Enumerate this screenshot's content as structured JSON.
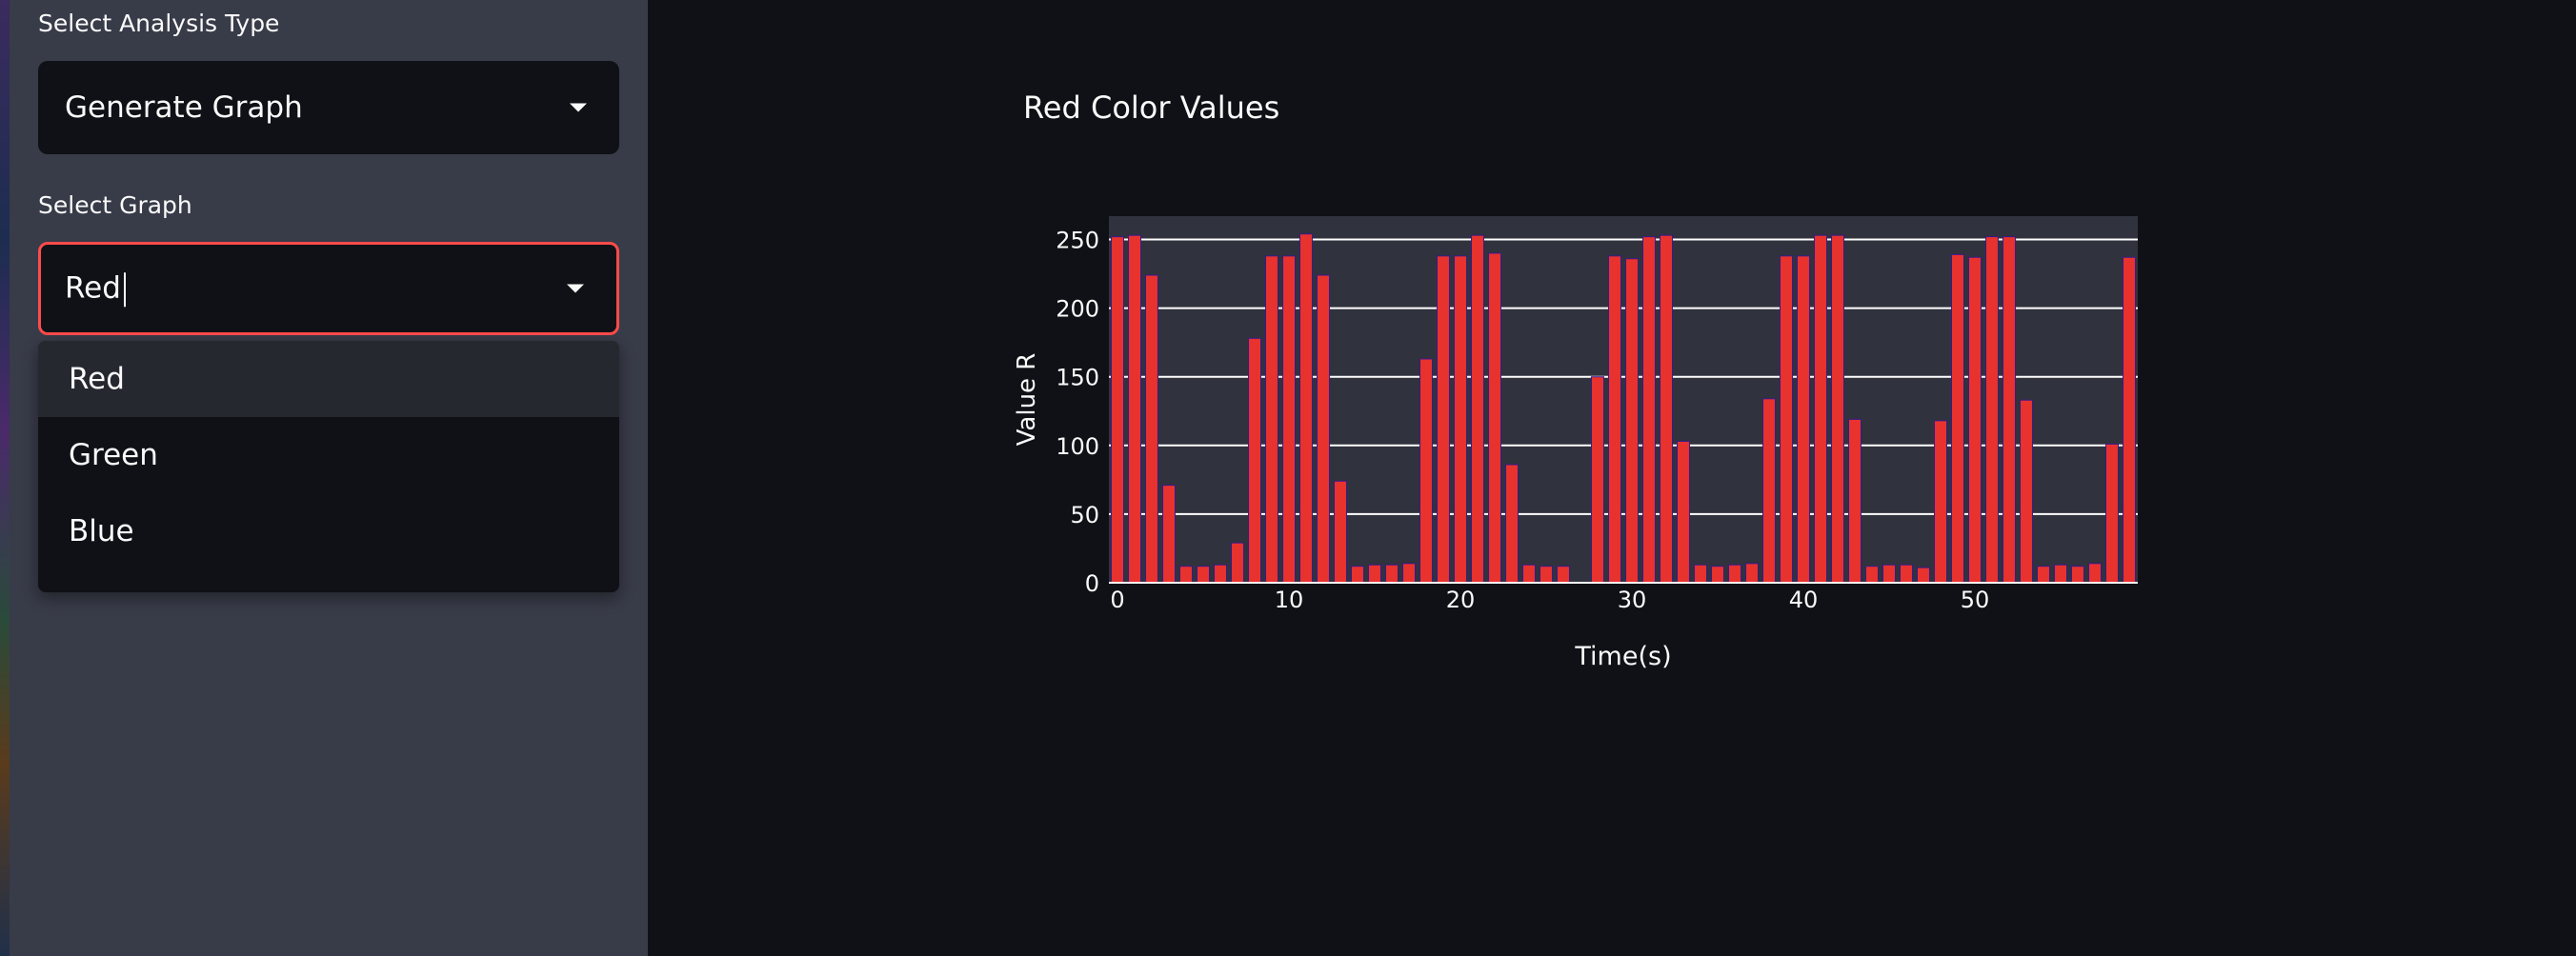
{
  "sidebar": {
    "analysis_label": "Select Analysis Type",
    "analysis_value": "Generate Graph",
    "graph_label": "Select Graph",
    "graph_value": "Red",
    "options": [
      "Red",
      "Green",
      "Blue"
    ]
  },
  "colors": {
    "bar": "#e8322e",
    "bar_outline": "#3a1a8c",
    "accent": "#ff4b4b",
    "plot_bg": "#30323d"
  },
  "chart_data": {
    "type": "bar",
    "title": "Red Color Values",
    "xlabel": "Time(s)",
    "ylabel": "Value R",
    "xlim": [
      -0.5,
      59.5
    ],
    "ylim": [
      0,
      267
    ],
    "x_ticks": [
      0,
      10,
      20,
      30,
      40,
      50
    ],
    "y_ticks": [
      0,
      50,
      100,
      150,
      200,
      250
    ],
    "grid": "horizontal",
    "x": [
      0,
      1,
      2,
      3,
      4,
      5,
      6,
      7,
      8,
      9,
      10,
      11,
      12,
      13,
      14,
      15,
      16,
      17,
      18,
      19,
      20,
      21,
      22,
      23,
      24,
      25,
      26,
      27,
      28,
      29,
      30,
      31,
      32,
      33,
      34,
      35,
      36,
      37,
      38,
      39,
      40,
      41,
      42,
      43,
      44,
      45,
      46,
      47,
      48,
      49,
      50,
      51,
      52,
      53,
      54,
      55,
      56,
      57,
      58,
      59
    ],
    "values": [
      252,
      253,
      224,
      71,
      12,
      12,
      13,
      29,
      178,
      238,
      238,
      254,
      224,
      74,
      12,
      13,
      13,
      14,
      163,
      238,
      238,
      253,
      240,
      86,
      13,
      12,
      12,
      0,
      150,
      238,
      236,
      252,
      253,
      103,
      13,
      12,
      13,
      14,
      134,
      238,
      238,
      253,
      253,
      119,
      12,
      13,
      13,
      11,
      118,
      239,
      237,
      252,
      252,
      133,
      12,
      13,
      12,
      14,
      101,
      237
    ]
  }
}
